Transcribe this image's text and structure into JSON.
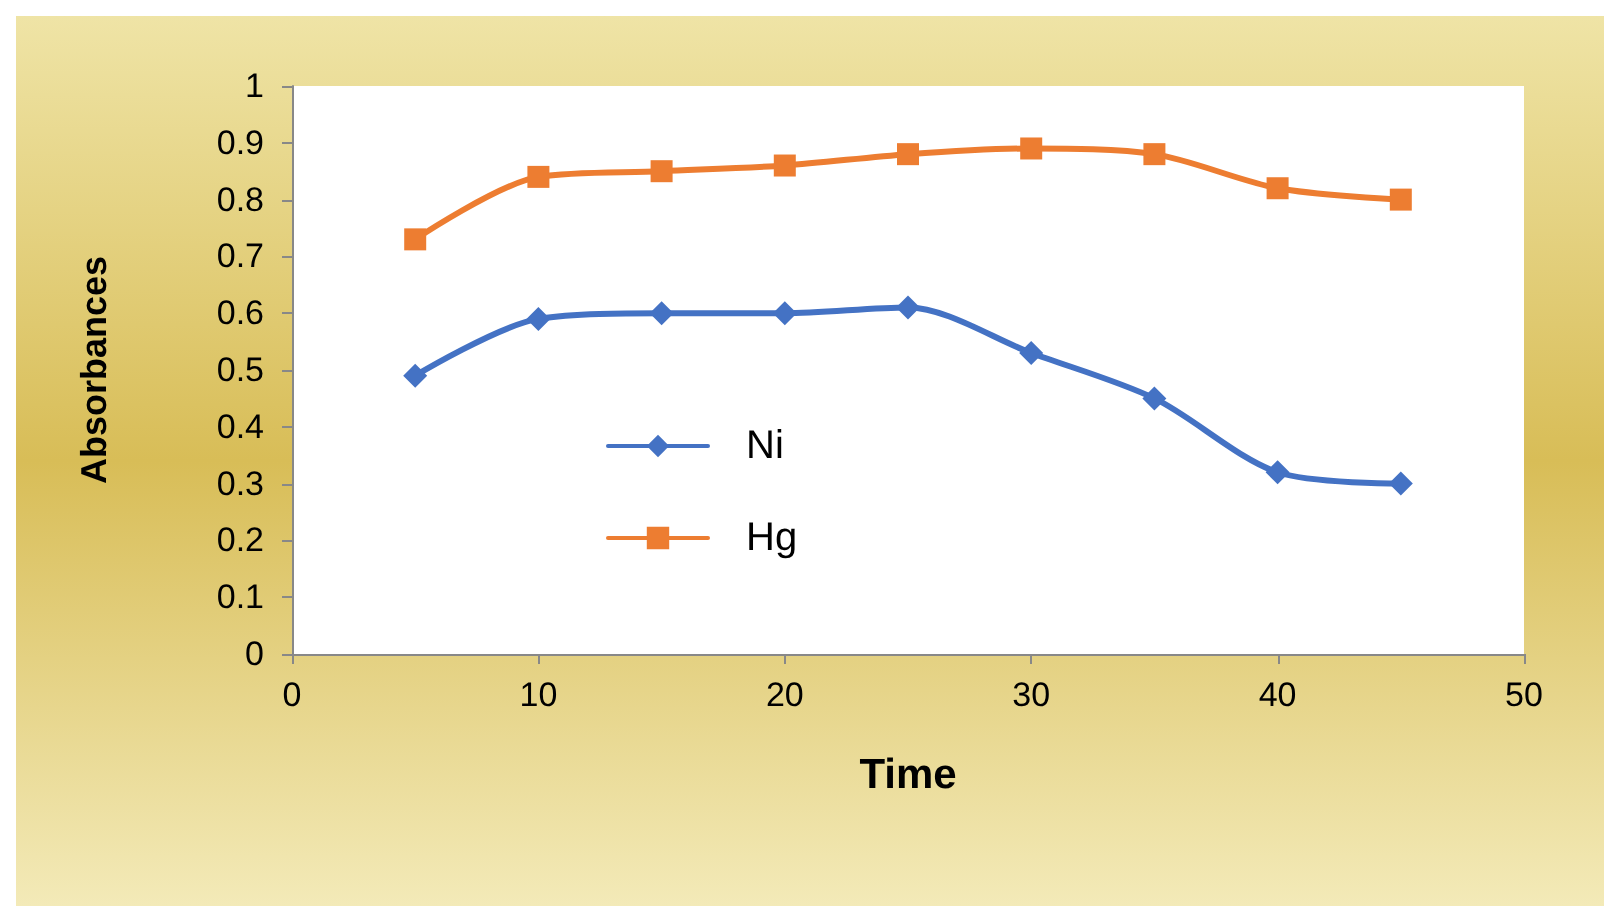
{
  "chart_data": {
    "type": "line",
    "xlabel": "Time",
    "ylabel": "Absorbances",
    "x": [
      5,
      10,
      15,
      20,
      25,
      30,
      35,
      40,
      45
    ],
    "xlim": [
      0,
      50
    ],
    "xticks": [
      0,
      10,
      20,
      30,
      40,
      50
    ],
    "ylim": [
      0,
      1
    ],
    "yticks": [
      0,
      0.1,
      0.2,
      0.3,
      0.4,
      0.5,
      0.6,
      0.7,
      0.8,
      0.9,
      1
    ],
    "grid": false,
    "legend": "left",
    "line_style": "solid",
    "series": [
      {
        "name": "Ni",
        "color": "#4472c4",
        "marker": "diamond",
        "values": [
          0.49,
          0.59,
          0.6,
          0.6,
          0.61,
          0.53,
          0.45,
          0.32,
          0.3
        ]
      },
      {
        "name": "Hg",
        "color": "#ed7d31",
        "marker": "square",
        "values": [
          0.73,
          0.84,
          0.85,
          0.86,
          0.88,
          0.89,
          0.88,
          0.82,
          0.8
        ]
      }
    ]
  }
}
